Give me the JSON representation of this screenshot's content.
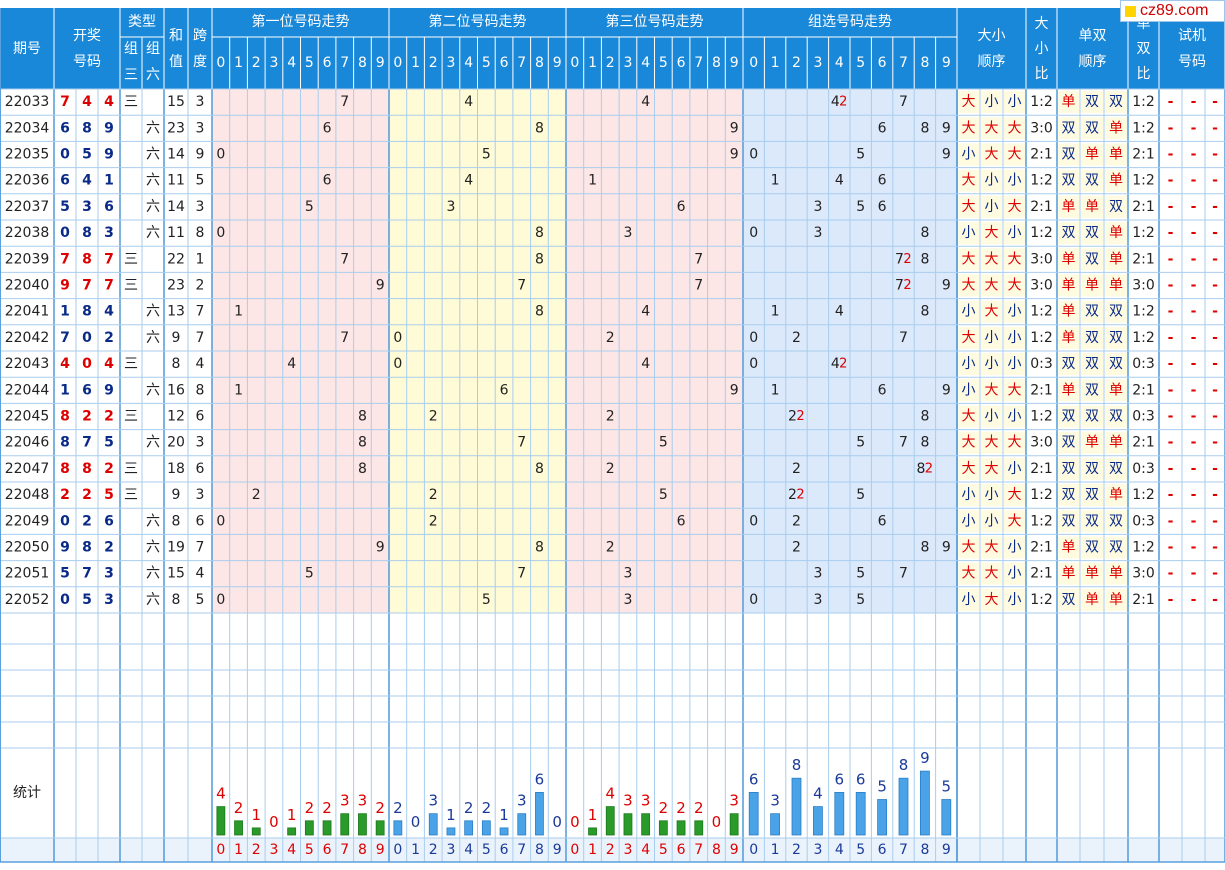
{
  "headers": {
    "period": "期号",
    "draw": [
      "开奖",
      "号码"
    ],
    "type": "类型",
    "type_g3": [
      "组",
      "三"
    ],
    "type_g6": [
      "组",
      "六"
    ],
    "sum": [
      "和",
      "值"
    ],
    "span": [
      "跨",
      "度"
    ],
    "pos1": "第一位号码走势",
    "pos2": "第二位号码走势",
    "pos3": "第三位号码走势",
    "group": "组选号码走势",
    "size_order": [
      "大小",
      "顺序"
    ],
    "size_ratio": [
      "大",
      "小",
      "比"
    ],
    "parity_order": [
      "单双",
      "顺序"
    ],
    "parity_ratio": [
      "单",
      "双",
      "比"
    ],
    "trial": [
      "试机",
      "号码"
    ],
    "digits": [
      "0",
      "1",
      "2",
      "3",
      "4",
      "5",
      "6",
      "7",
      "8",
      "9"
    ]
  },
  "watermark": "cz89.com",
  "footer": {
    "stats_label": "统计"
  },
  "trial_placeholder": "-",
  "rows": [
    {
      "period": "22033",
      "digits": [
        "7",
        "4",
        "4"
      ],
      "type": "三",
      "sum": "15",
      "span": "3",
      "repeat": "4",
      "size": [
        "大",
        "小",
        "小"
      ],
      "size_ratio": "1:2",
      "parity": [
        "单",
        "双",
        "双"
      ],
      "parity_ratio": "1:2"
    },
    {
      "period": "22034",
      "digits": [
        "6",
        "8",
        "9"
      ],
      "type": "六",
      "sum": "23",
      "span": "3",
      "repeat": "",
      "size": [
        "大",
        "大",
        "大"
      ],
      "size_ratio": "3:0",
      "parity": [
        "双",
        "双",
        "单"
      ],
      "parity_ratio": "1:2"
    },
    {
      "period": "22035",
      "digits": [
        "0",
        "5",
        "9"
      ],
      "type": "六",
      "sum": "14",
      "span": "9",
      "repeat": "",
      "size": [
        "小",
        "大",
        "大"
      ],
      "size_ratio": "2:1",
      "parity": [
        "双",
        "单",
        "单"
      ],
      "parity_ratio": "2:1"
    },
    {
      "period": "22036",
      "digits": [
        "6",
        "4",
        "1"
      ],
      "type": "六",
      "sum": "11",
      "span": "5",
      "repeat": "",
      "size": [
        "大",
        "小",
        "小"
      ],
      "size_ratio": "1:2",
      "parity": [
        "双",
        "双",
        "单"
      ],
      "parity_ratio": "1:2"
    },
    {
      "period": "22037",
      "digits": [
        "5",
        "3",
        "6"
      ],
      "type": "六",
      "sum": "14",
      "span": "3",
      "repeat": "",
      "size": [
        "大",
        "小",
        "大"
      ],
      "size_ratio": "2:1",
      "parity": [
        "单",
        "单",
        "双"
      ],
      "parity_ratio": "2:1"
    },
    {
      "period": "22038",
      "digits": [
        "0",
        "8",
        "3"
      ],
      "type": "六",
      "sum": "11",
      "span": "8",
      "repeat": "",
      "size": [
        "小",
        "大",
        "小"
      ],
      "size_ratio": "1:2",
      "parity": [
        "双",
        "双",
        "单"
      ],
      "parity_ratio": "1:2"
    },
    {
      "period": "22039",
      "digits": [
        "7",
        "8",
        "7"
      ],
      "type": "三",
      "sum": "22",
      "span": "1",
      "repeat": "7",
      "size": [
        "大",
        "大",
        "大"
      ],
      "size_ratio": "3:0",
      "parity": [
        "单",
        "双",
        "单"
      ],
      "parity_ratio": "2:1"
    },
    {
      "period": "22040",
      "digits": [
        "9",
        "7",
        "7"
      ],
      "type": "三",
      "sum": "23",
      "span": "2",
      "repeat": "7",
      "size": [
        "大",
        "大",
        "大"
      ],
      "size_ratio": "3:0",
      "parity": [
        "单",
        "单",
        "单"
      ],
      "parity_ratio": "3:0"
    },
    {
      "period": "22041",
      "digits": [
        "1",
        "8",
        "4"
      ],
      "type": "六",
      "sum": "13",
      "span": "7",
      "repeat": "",
      "size": [
        "小",
        "大",
        "小"
      ],
      "size_ratio": "1:2",
      "parity": [
        "单",
        "双",
        "双"
      ],
      "parity_ratio": "1:2"
    },
    {
      "period": "22042",
      "digits": [
        "7",
        "0",
        "2"
      ],
      "type": "六",
      "sum": "9",
      "span": "7",
      "repeat": "",
      "size": [
        "大",
        "小",
        "小"
      ],
      "size_ratio": "1:2",
      "parity": [
        "单",
        "双",
        "双"
      ],
      "parity_ratio": "1:2"
    },
    {
      "period": "22043",
      "digits": [
        "4",
        "0",
        "4"
      ],
      "type": "三",
      "sum": "8",
      "span": "4",
      "repeat": "4",
      "size": [
        "小",
        "小",
        "小"
      ],
      "size_ratio": "0:3",
      "parity": [
        "双",
        "双",
        "双"
      ],
      "parity_ratio": "0:3"
    },
    {
      "period": "22044",
      "digits": [
        "1",
        "6",
        "9"
      ],
      "type": "六",
      "sum": "16",
      "span": "8",
      "repeat": "",
      "size": [
        "小",
        "大",
        "大"
      ],
      "size_ratio": "2:1",
      "parity": [
        "单",
        "双",
        "单"
      ],
      "parity_ratio": "2:1"
    },
    {
      "period": "22045",
      "digits": [
        "8",
        "2",
        "2"
      ],
      "type": "三",
      "sum": "12",
      "span": "6",
      "repeat": "2",
      "size": [
        "大",
        "小",
        "小"
      ],
      "size_ratio": "1:2",
      "parity": [
        "双",
        "双",
        "双"
      ],
      "parity_ratio": "0:3"
    },
    {
      "period": "22046",
      "digits": [
        "8",
        "7",
        "5"
      ],
      "type": "六",
      "sum": "20",
      "span": "3",
      "repeat": "",
      "size": [
        "大",
        "大",
        "大"
      ],
      "size_ratio": "3:0",
      "parity": [
        "双",
        "单",
        "单"
      ],
      "parity_ratio": "2:1"
    },
    {
      "period": "22047",
      "digits": [
        "8",
        "8",
        "2"
      ],
      "type": "三",
      "sum": "18",
      "span": "6",
      "repeat": "8",
      "size": [
        "大",
        "大",
        "小"
      ],
      "size_ratio": "2:1",
      "parity": [
        "双",
        "双",
        "双"
      ],
      "parity_ratio": "0:3"
    },
    {
      "period": "22048",
      "digits": [
        "2",
        "2",
        "5"
      ],
      "type": "三",
      "sum": "9",
      "span": "3",
      "repeat": "2",
      "size": [
        "小",
        "小",
        "大"
      ],
      "size_ratio": "1:2",
      "parity": [
        "双",
        "双",
        "单"
      ],
      "parity_ratio": "1:2"
    },
    {
      "period": "22049",
      "digits": [
        "0",
        "2",
        "6"
      ],
      "type": "六",
      "sum": "8",
      "span": "6",
      "repeat": "",
      "size": [
        "小",
        "小",
        "大"
      ],
      "size_ratio": "1:2",
      "parity": [
        "双",
        "双",
        "双"
      ],
      "parity_ratio": "0:3"
    },
    {
      "period": "22050",
      "digits": [
        "9",
        "8",
        "2"
      ],
      "type": "六",
      "sum": "19",
      "span": "7",
      "repeat": "",
      "size": [
        "大",
        "大",
        "小"
      ],
      "size_ratio": "2:1",
      "parity": [
        "单",
        "双",
        "双"
      ],
      "parity_ratio": "1:2"
    },
    {
      "period": "22051",
      "digits": [
        "5",
        "7",
        "3"
      ],
      "type": "六",
      "sum": "15",
      "span": "4",
      "repeat": "",
      "size": [
        "大",
        "大",
        "小"
      ],
      "size_ratio": "2:1",
      "parity": [
        "单",
        "单",
        "单"
      ],
      "parity_ratio": "3:0"
    },
    {
      "period": "22052",
      "digits": [
        "0",
        "5",
        "3"
      ],
      "type": "六",
      "sum": "8",
      "span": "5",
      "repeat": "",
      "size": [
        "小",
        "大",
        "小"
      ],
      "size_ratio": "1:2",
      "parity": [
        "双",
        "单",
        "单"
      ],
      "parity_ratio": "2:1"
    }
  ],
  "chart_data": {
    "type": "bar",
    "title": "统计",
    "categories": [
      "0",
      "1",
      "2",
      "3",
      "4",
      "5",
      "6",
      "7",
      "8",
      "9"
    ],
    "series": [
      {
        "values": [
          4,
          2,
          1,
          0,
          1,
          2,
          2,
          3,
          3,
          2
        ]
      },
      {
        "values": [
          2,
          0,
          3,
          1,
          2,
          2,
          1,
          3,
          6,
          0
        ]
      },
      {
        "values": [
          0,
          1,
          4,
          3,
          3,
          2,
          2,
          2,
          0,
          3
        ]
      },
      {
        "values": [
          6,
          3,
          8,
          4,
          6,
          6,
          5,
          8,
          9,
          5
        ]
      }
    ]
  }
}
